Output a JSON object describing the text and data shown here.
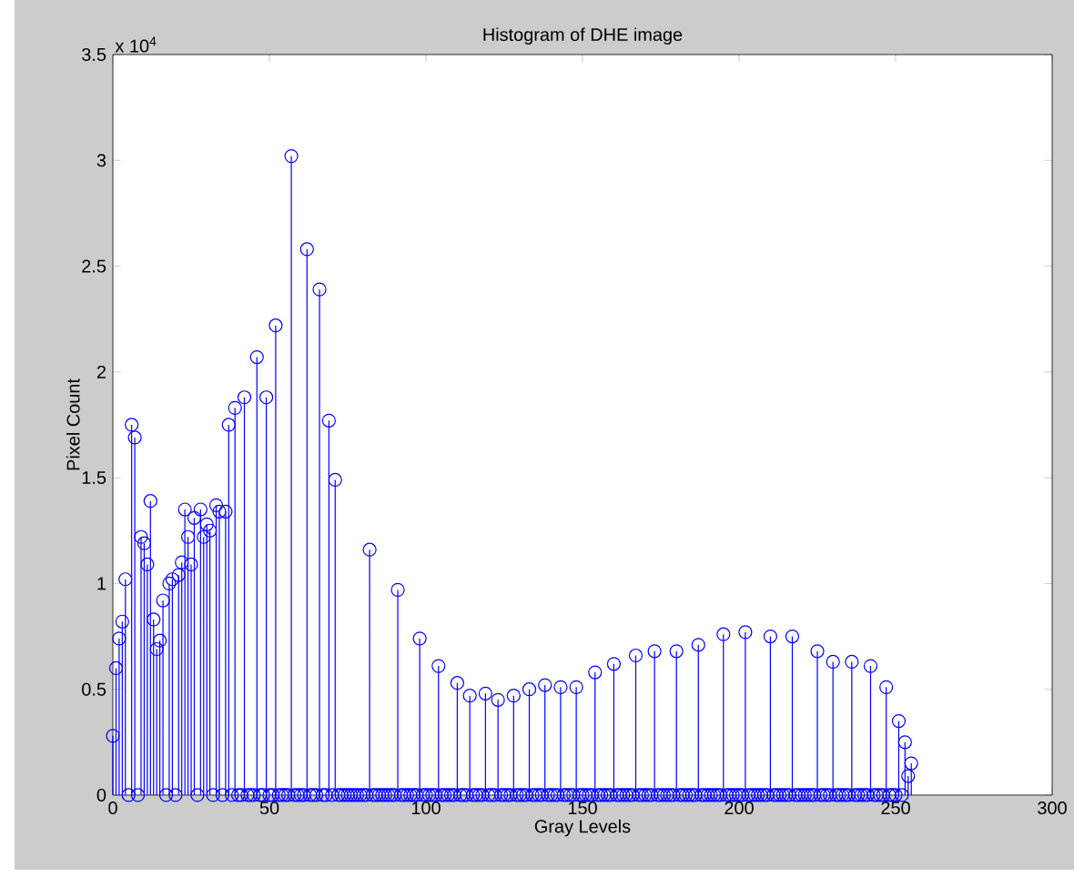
{
  "chart_data": {
    "type": "lollipop",
    "title": "Histogram of DHE image",
    "xlabel": "Gray Levels",
    "ylabel": "Pixel Count",
    "annotations": [
      "x 10$^{4}$"
    ],
    "xlim": [
      0,
      300
    ],
    "xticks": [
      0,
      50,
      100,
      150,
      200,
      250,
      300
    ],
    "ylim": [
      0,
      3.5
    ],
    "yticks": [
      0,
      0.5,
      1,
      1.5,
      2,
      2.5,
      3,
      3.5
    ],
    "marker": "circle",
    "color": "#0000ff",
    "grid": false,
    "x": [
      0,
      1,
      2,
      3,
      4,
      5,
      6,
      7,
      8,
      9,
      10,
      11,
      12,
      13,
      14,
      15,
      16,
      17,
      18,
      19,
      20,
      21,
      22,
      23,
      24,
      25,
      26,
      27,
      28,
      29,
      30,
      31,
      32,
      33,
      34,
      35,
      36,
      37,
      38,
      39,
      40,
      41,
      42,
      43,
      44,
      45,
      46,
      47,
      48,
      49,
      50,
      51,
      52,
      53,
      54,
      55,
      56,
      57,
      58,
      59,
      60,
      61,
      62,
      63,
      64,
      65,
      66,
      67,
      68,
      69,
      70,
      71,
      72,
      73,
      74,
      75,
      76,
      77,
      78,
      79,
      80,
      81,
      82,
      83,
      84,
      85,
      86,
      87,
      88,
      89,
      90,
      91,
      92,
      93,
      94,
      95,
      96,
      97,
      98,
      99,
      100,
      101,
      102,
      103,
      104,
      105,
      106,
      107,
      108,
      109,
      110,
      111,
      112,
      113,
      114,
      115,
      116,
      117,
      118,
      119,
      120,
      121,
      122,
      123,
      124,
      125,
      126,
      127,
      128,
      129,
      130,
      131,
      132,
      133,
      134,
      135,
      136,
      137,
      138,
      139,
      140,
      141,
      142,
      143,
      144,
      145,
      146,
      147,
      148,
      149,
      150,
      151,
      152,
      153,
      154,
      155,
      156,
      157,
      158,
      159,
      160,
      161,
      162,
      163,
      164,
      165,
      166,
      167,
      168,
      169,
      170,
      171,
      172,
      173,
      174,
      175,
      176,
      177,
      178,
      179,
      180,
      181,
      182,
      183,
      184,
      185,
      186,
      187,
      188,
      189,
      190,
      191,
      192,
      193,
      194,
      195,
      196,
      197,
      198,
      199,
      200,
      201,
      202,
      203,
      204,
      205,
      206,
      207,
      208,
      209,
      210,
      211,
      212,
      213,
      214,
      215,
      216,
      217,
      218,
      219,
      220,
      221,
      222,
      223,
      224,
      225,
      226,
      227,
      228,
      229,
      230,
      231,
      232,
      233,
      234,
      235,
      236,
      237,
      238,
      239,
      240,
      241,
      242,
      243,
      244,
      245,
      246,
      247,
      248,
      249,
      250,
      251,
      252,
      253,
      254,
      255
    ],
    "values": [
      0.28,
      0.6,
      0.74,
      0.82,
      1.02,
      0,
      1.75,
      1.69,
      0,
      1.22,
      1.19,
      1.09,
      1.39,
      0.83,
      0.69,
      0.73,
      0.92,
      0,
      1,
      1.02,
      0,
      1.04,
      1.1,
      1.35,
      1.22,
      1.09,
      1.31,
      0,
      1.35,
      1.22,
      1.28,
      1.25,
      0,
      1.37,
      1.34,
      0,
      1.34,
      1.75,
      0,
      1.83,
      0,
      0,
      1.88,
      0,
      0,
      0,
      2.07,
      0,
      0,
      1.88,
      0,
      0,
      2.22,
      0,
      0,
      0,
      0,
      3.02,
      0,
      0,
      0,
      0,
      2.58,
      0,
      0,
      0,
      2.39,
      0,
      0,
      1.77,
      0,
      1.49,
      0,
      0,
      0,
      0,
      0,
      0,
      0,
      0,
      0,
      0,
      1.16,
      0,
      0,
      0,
      0,
      0,
      0,
      0,
      0,
      0.97,
      0,
      0,
      0,
      0,
      0,
      0,
      0.74,
      0,
      0,
      0,
      0,
      0,
      0.61,
      0,
      0,
      0,
      0,
      0,
      0.53,
      0,
      0,
      0,
      0.47,
      0,
      0,
      0,
      0,
      0.48,
      0,
      0,
      0,
      0.45,
      0,
      0,
      0,
      0,
      0.47,
      0,
      0,
      0,
      0,
      0.5,
      0,
      0,
      0,
      0,
      0.52,
      0,
      0,
      0,
      0,
      0.51,
      0,
      0,
      0,
      0,
      0.51,
      0,
      0,
      0,
      0,
      0,
      0.58,
      0,
      0,
      0,
      0,
      0,
      0.62,
      0,
      0,
      0,
      0,
      0,
      0,
      0.66,
      0,
      0,
      0,
      0,
      0,
      0.68,
      0,
      0,
      0,
      0,
      0,
      0,
      0.68,
      0,
      0,
      0,
      0,
      0,
      0,
      0.71,
      0,
      0,
      0,
      0,
      0,
      0,
      0,
      0.76,
      0,
      0,
      0,
      0,
      0,
      0,
      0.77,
      0,
      0,
      0,
      0,
      0,
      0,
      0,
      0.75,
      0,
      0,
      0,
      0,
      0,
      0,
      0.75,
      0,
      0,
      0,
      0,
      0,
      0,
      0,
      0.68,
      0,
      0,
      0,
      0,
      0.63,
      0,
      0,
      0,
      0,
      0,
      0.63,
      0,
      0,
      0,
      0,
      0,
      0.61,
      0,
      0,
      0,
      0,
      0.51,
      0,
      0,
      0,
      0.35,
      0,
      0.25,
      0.09,
      0.15
    ]
  }
}
